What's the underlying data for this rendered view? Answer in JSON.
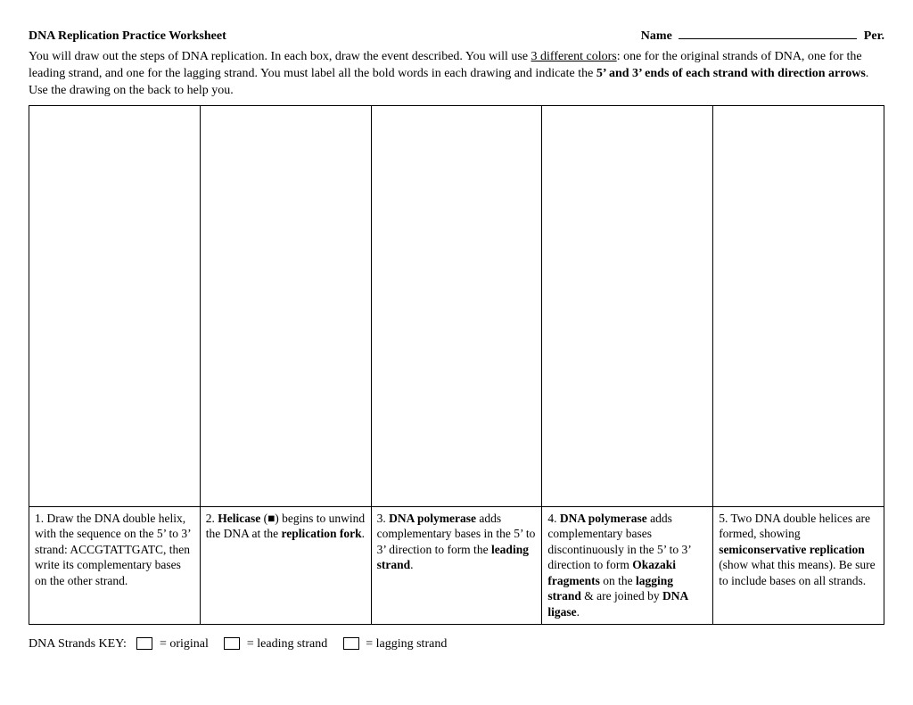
{
  "header": {
    "title": "DNA Replication Practice Worksheet",
    "name_label": "Name",
    "per_label": "Per."
  },
  "instructions": {
    "p1a": "You will draw out the steps of DNA replication.  In each box, draw the event described.  You will use ",
    "p1_u": "3 different colors",
    "p1b": ": one for the original strands of DNA, one for the leading strand, and one for the lagging strand.  You must label all the bold words in each drawing and indicate the ",
    "p1_bold": "5’ and 3’ ends of each strand with direction arrows",
    "p1c": ".  Use the drawing on the back to help you."
  },
  "cells": {
    "c1": {
      "a": "1. Draw the DNA double helix, with the sequence on the 5’ to 3’ strand: ACCGTATTGATC, then write its complementary bases on the other strand."
    },
    "c2": {
      "a": "2. ",
      "b1": "Helicase",
      "mid": " (■) begins to unwind the DNA at the ",
      "b2": "replication fork",
      "end": "."
    },
    "c3": {
      "a": "3. ",
      "b1": "DNA polymerase",
      "mid": " adds complementary bases in the 5’ to 3’ direction to form the ",
      "b2": "leading strand",
      "end": "."
    },
    "c4": {
      "a": "4. ",
      "b1": "DNA polymerase",
      "mid1": " adds complementary bases discontinuously in the 5’ to 3’ direction to form ",
      "b2": "Okazaki fragments",
      "mid2": " on the ",
      "b3": "lagging strand",
      "mid3": " & are joined by ",
      "b4": "DNA ligase",
      "end": "."
    },
    "c5": {
      "a": "5. Two DNA double helices are formed, showing ",
      "b1": "semiconservative replication",
      "mid": " (show what this means). Be sure to include bases on all strands."
    }
  },
  "key": {
    "label": "DNA Strands KEY:",
    "k1": "= original",
    "k2": "= leading strand",
    "k3": "= lagging strand"
  }
}
